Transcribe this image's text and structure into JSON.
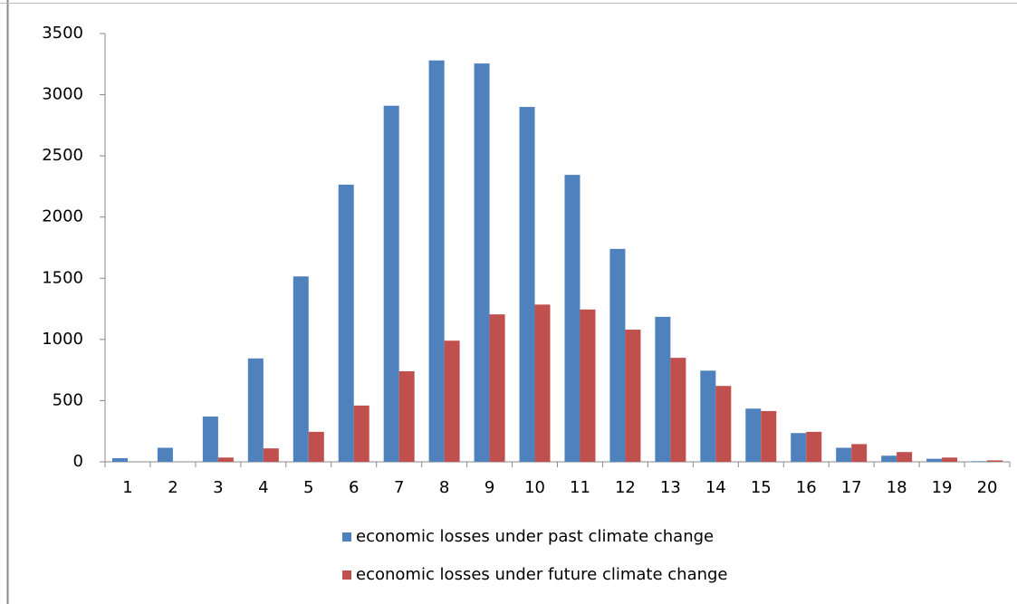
{
  "chart_data": {
    "type": "bar",
    "categories": [
      "1",
      "2",
      "3",
      "4",
      "5",
      "6",
      "7",
      "8",
      "9",
      "10",
      "11",
      "12",
      "13",
      "14",
      "15",
      "16",
      "17",
      "18",
      "19",
      "20"
    ],
    "series": [
      {
        "name": "economic losses under past climate change",
        "color": "#4f81bd",
        "values": [
          30,
          115,
          370,
          845,
          1515,
          2265,
          2910,
          3280,
          3255,
          2900,
          2345,
          1740,
          1185,
          745,
          435,
          235,
          115,
          50,
          25,
          5
        ]
      },
      {
        "name": "economic losses under future climate change",
        "color": "#c0504d",
        "values": [
          0,
          0,
          35,
          110,
          245,
          460,
          740,
          990,
          1205,
          1285,
          1245,
          1080,
          850,
          620,
          415,
          245,
          145,
          80,
          35,
          12
        ]
      }
    ],
    "ylim": [
      0,
      3500
    ],
    "yticks": [
      0,
      500,
      1000,
      1500,
      2000,
      2500,
      3000,
      3500
    ],
    "grid": false,
    "legend": "bottom"
  }
}
